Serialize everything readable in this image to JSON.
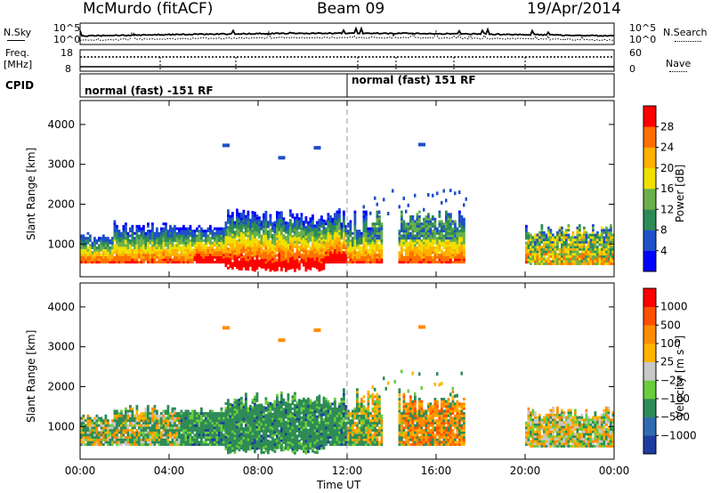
{
  "header": {
    "station": "McMurdo (fitACF)",
    "beam": "Beam 09",
    "date": "19/Apr/2014"
  },
  "top_panels": {
    "nsky_label": "N.Sky",
    "nsearch_label": "N.Search",
    "noise_ticks": [
      "10^5",
      "10^0"
    ],
    "freq_label_line1": "Freq.",
    "freq_label_line2": "[MHz]",
    "freq_ticks": [
      "18",
      "8"
    ],
    "nave_label": "Nave",
    "nave_ticks": [
      "60",
      "0"
    ],
    "cpid_label": "CPID",
    "cpid_segments": [
      "normal (fast) -151 RF",
      "normal (fast) 151 RF"
    ]
  },
  "chart_data": [
    {
      "type": "heatmap",
      "title": "",
      "xlabel": "",
      "ylabel": "Slant Range [km]",
      "x_ticks": [
        "00:00",
        "04:00",
        "08:00",
        "12:00",
        "16:00",
        "20:00",
        "00:00"
      ],
      "xlim_hours": [
        0,
        24
      ],
      "y_ticks": [
        1000,
        2000,
        3000,
        4000
      ],
      "ylim": [
        180,
        4600
      ],
      "colorbar": {
        "label": "Power [dB]",
        "ticks": [
          "4",
          "8",
          "12",
          "16",
          "20",
          "24",
          "28"
        ],
        "colors": [
          "#0000ff",
          "#1e50c8",
          "#2e8b57",
          "#6ab04c",
          "#f0e000",
          "#ffb000",
          "#ff7000",
          "#ff0000"
        ]
      }
    },
    {
      "type": "heatmap",
      "title": "",
      "xlabel": "Time UT",
      "ylabel": "Slant Range [km]",
      "x_ticks": [
        "00:00",
        "04:00",
        "08:00",
        "12:00",
        "16:00",
        "20:00",
        "00:00"
      ],
      "xlim_hours": [
        0,
        24
      ],
      "y_ticks": [
        1000,
        2000,
        3000,
        4000
      ],
      "ylim": [
        180,
        4600
      ],
      "colorbar": {
        "label": "Velocity [m s⁻¹]",
        "ticks": [
          "1000",
          "500",
          "100",
          "25",
          "−25",
          "−100",
          "−500",
          "−1000"
        ],
        "colors": [
          "#1e3ca0",
          "#2f6bb0",
          "#2e8b57",
          "#6acd3c",
          "#c8c8c8",
          "#ffb400",
          "#ff8c00",
          "#ff5000",
          "#ff0000"
        ]
      }
    }
  ]
}
